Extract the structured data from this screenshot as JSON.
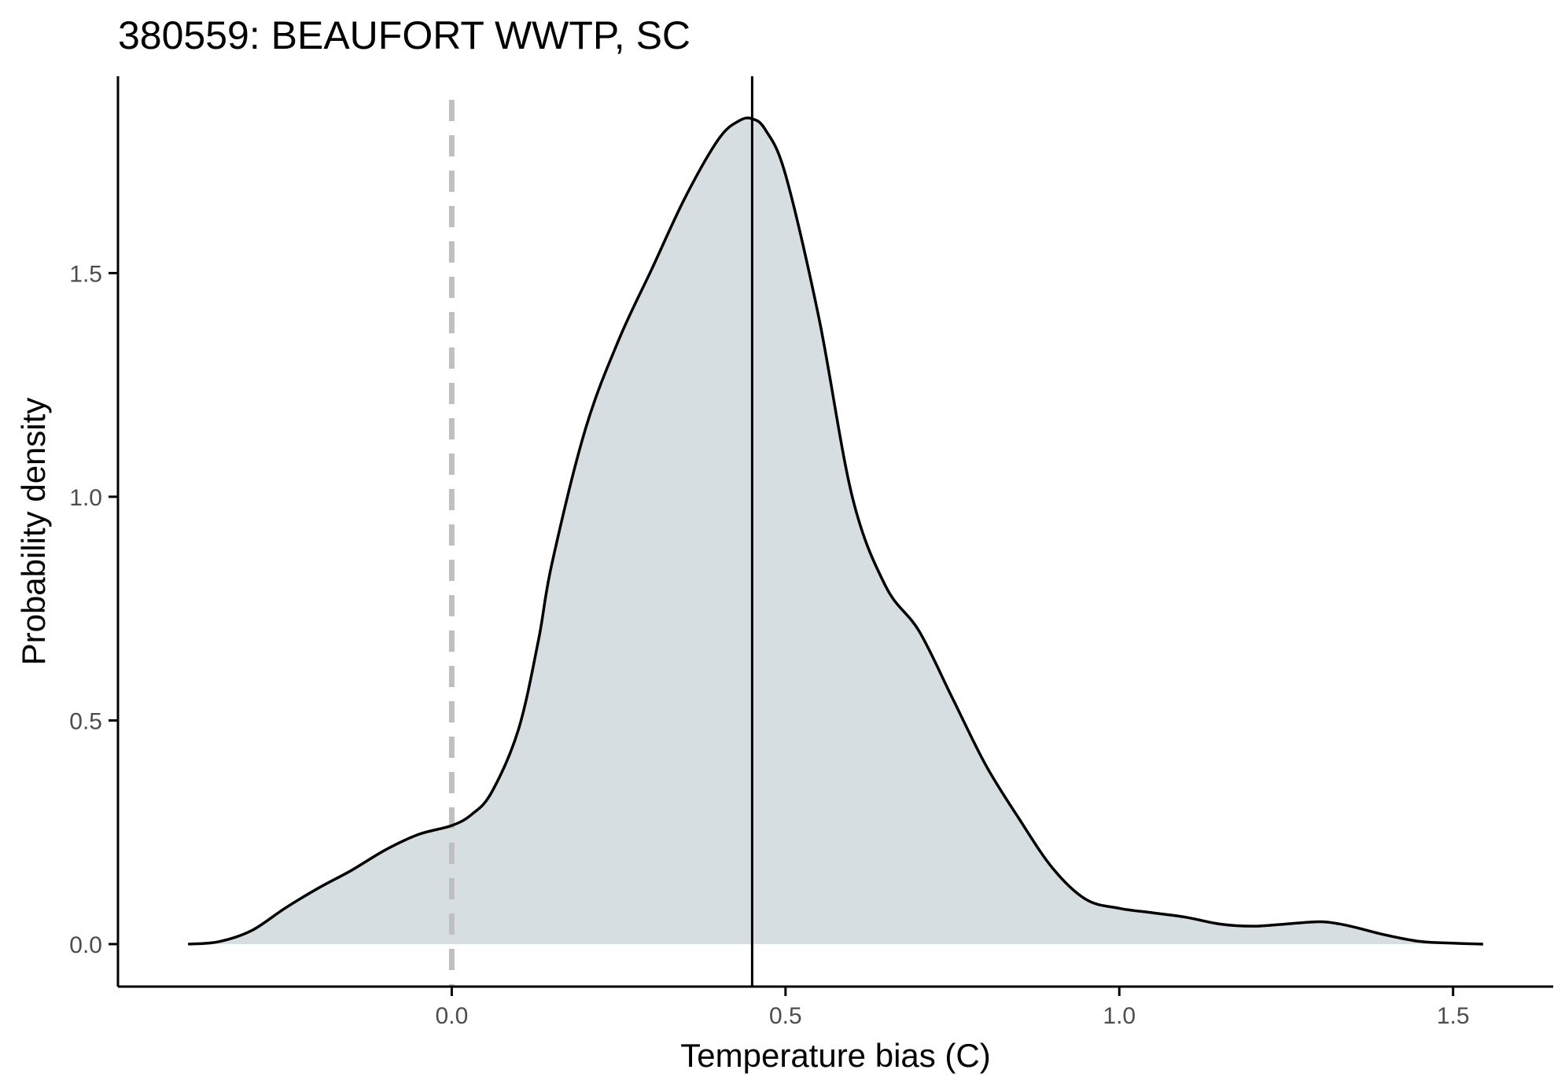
{
  "chart_data": {
    "type": "area",
    "title": "380559: BEAUFORT WWTP, SC",
    "xlabel": "Temperature bias (C)",
    "ylabel": "Probability density",
    "xlim": [
      -0.5,
      1.65
    ],
    "ylim": [
      -0.095,
      1.94
    ],
    "x_ticks": [
      0.0,
      0.5,
      1.0,
      1.5
    ],
    "x_tick_labels": [
      "0.0",
      "0.5",
      "1.0",
      "1.5"
    ],
    "y_ticks": [
      0.0,
      0.5,
      1.0,
      1.5
    ],
    "y_tick_labels": [
      "0.0",
      "0.5",
      "1.0",
      "1.5"
    ],
    "grid": false,
    "fill_color": "#d7dee1",
    "line_color": "#000000",
    "reference_lines": [
      {
        "x": 0.0,
        "style": "dashed",
        "color": "#bfbfbf"
      },
      {
        "x": 0.45,
        "style": "solid",
        "color": "#000000"
      }
    ],
    "series": [
      {
        "x": [
          -0.395,
          -0.35,
          -0.3,
          -0.25,
          -0.2,
          -0.15,
          -0.1,
          -0.05,
          0.0,
          0.03,
          0.06,
          0.1,
          0.13,
          0.15,
          0.2,
          0.25,
          0.3,
          0.35,
          0.4,
          0.43,
          0.45,
          0.47,
          0.5,
          0.55,
          0.6,
          0.65,
          0.7,
          0.75,
          0.8,
          0.85,
          0.9,
          0.95,
          1.0,
          1.05,
          1.1,
          1.15,
          1.2,
          1.25,
          1.3,
          1.33,
          1.36,
          1.4,
          1.45,
          1.5,
          1.545
        ],
        "y": [
          0.0,
          0.005,
          0.03,
          0.08,
          0.125,
          0.165,
          0.21,
          0.245,
          0.265,
          0.29,
          0.34,
          0.48,
          0.68,
          0.85,
          1.15,
          1.35,
          1.51,
          1.67,
          1.8,
          1.84,
          1.845,
          1.82,
          1.72,
          1.4,
          1.0,
          0.8,
          0.7,
          0.55,
          0.4,
          0.28,
          0.17,
          0.1,
          0.08,
          0.07,
          0.06,
          0.045,
          0.04,
          0.045,
          0.05,
          0.045,
          0.035,
          0.02,
          0.006,
          0.002,
          0.0
        ]
      }
    ]
  }
}
